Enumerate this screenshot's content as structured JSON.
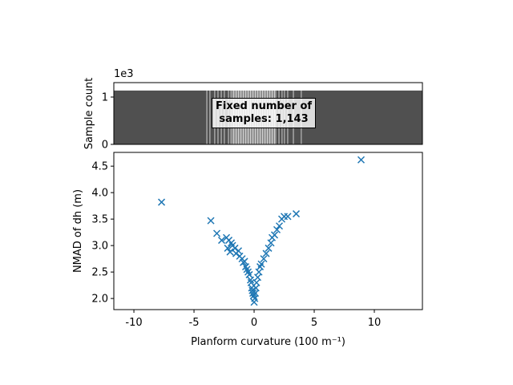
{
  "chart_data": [
    {
      "type": "histogram",
      "ylabel": "Sample count",
      "y_offset_label": "1e3",
      "annotation": "Fixed number of\nsamples: 1,143",
      "color": "#505050",
      "bins": [
        -15,
        -3.93,
        -3.67,
        -3.27,
        -3.0,
        -2.73,
        -2.47,
        -2.13,
        -1.93,
        -1.8,
        -1.7,
        -1.6,
        -1.5,
        -1.4,
        -1.3,
        -1.2,
        -1.1,
        -1.0,
        -0.9,
        -0.8,
        -0.7,
        -0.6,
        -0.5,
        -0.4,
        -0.3,
        -0.2,
        -0.1,
        0,
        0.1,
        0.2,
        0.3,
        0.4,
        0.5,
        0.6,
        0.7,
        0.8,
        0.9,
        1.0,
        1.1,
        1.2,
        1.3,
        1.4,
        1.5,
        1.6,
        1.7,
        1.8,
        2.07,
        2.33,
        2.53,
        2.8,
        3.27,
        3.93,
        20
      ],
      "values": [
        1143,
        1143,
        1143,
        1143,
        1143,
        1143,
        1143,
        1143,
        1143,
        1143,
        1143,
        1143,
        1143,
        1143,
        1143,
        1143,
        1143,
        1143,
        1143,
        1143,
        1143,
        1143,
        1143,
        1143,
        1143,
        1143,
        1143,
        1143,
        1143,
        1143,
        1143,
        1143,
        1143,
        1143,
        1143,
        1143,
        1143,
        1143,
        1143,
        1143,
        1143,
        1143,
        1143,
        1143,
        1143,
        1143,
        1143,
        1143,
        1143,
        1143,
        1143,
        1143
      ],
      "xlim": [
        -11.67,
        14.0
      ],
      "ylim": [
        0,
        1305
      ],
      "yticks": [
        0,
        {
          "value": 1000,
          "label": "1"
        }
      ]
    },
    {
      "type": "scatter",
      "xlabel": "Planform curvature (100 m⁻¹)",
      "ylabel": "NMAD of dh (m)",
      "color": "#1f77b4",
      "marker": "x",
      "x": [
        -7.7,
        -3.6,
        -3.1,
        -2.7,
        -2.3,
        -2.1,
        -2.2,
        -2.0,
        -1.9,
        -1.8,
        -1.6,
        -1.5,
        -1.3,
        -1.2,
        -1.0,
        -0.9,
        -0.8,
        -0.7,
        -0.6,
        -0.5,
        -0.4,
        -0.3,
        -0.25,
        -0.2,
        -0.15,
        -0.1,
        -0.05,
        0,
        0.05,
        0.1,
        0.15,
        0.2,
        0.3,
        0.4,
        0.5,
        0.6,
        0.8,
        1.0,
        1.2,
        1.4,
        1.5,
        1.7,
        1.9,
        2.1,
        2.3,
        2.5,
        2.8,
        3.5,
        8.9
      ],
      "values": [
        3.82,
        3.47,
        3.23,
        3.1,
        3.15,
        3.1,
        2.95,
        2.88,
        3.05,
        3.0,
        2.95,
        2.85,
        2.9,
        2.8,
        2.75,
        2.68,
        2.7,
        2.6,
        2.55,
        2.5,
        2.45,
        2.35,
        2.3,
        2.2,
        2.15,
        2.1,
        2.05,
        1.93,
        2.0,
        2.1,
        2.2,
        2.3,
        2.4,
        2.5,
        2.6,
        2.65,
        2.75,
        2.85,
        2.95,
        3.05,
        3.15,
        3.2,
        3.3,
        3.37,
        3.5,
        3.55,
        3.55,
        3.6,
        4.62
      ],
      "xlim": [
        -11.67,
        14.0
      ],
      "ylim": [
        1.79,
        4.76
      ],
      "xticks": [
        -10,
        -5,
        0,
        5,
        10
      ],
      "yticks": [
        {
          "value": 2.0,
          "label": "2.0"
        },
        2.5,
        {
          "value": 3.0,
          "label": "3.0"
        },
        3.5,
        {
          "value": 4.0,
          "label": "4.0"
        },
        4.5
      ]
    }
  ]
}
